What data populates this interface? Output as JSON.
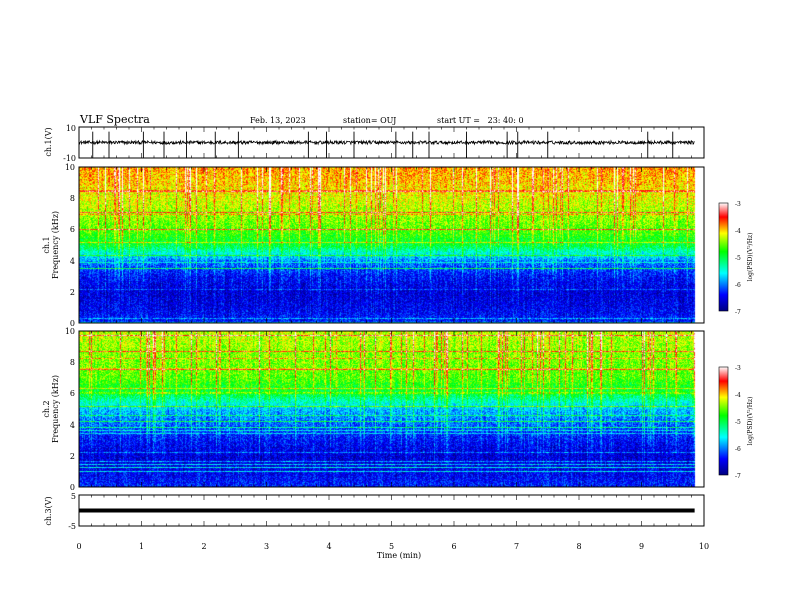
{
  "header": {
    "title": "VLF Spectra",
    "date": "Feb. 13, 2023",
    "station": "station= OUJ",
    "start": "start UT =   23: 40: 0"
  },
  "chart_data": [
    {
      "type": "line",
      "panel": "ch1-waveform",
      "ylabel": "ch.1(V)",
      "ylim": [
        -10,
        10
      ],
      "yticks": [
        "10",
        "-10"
      ],
      "baseline": 0,
      "spikes_min": [
        0.22,
        0.48,
        1.03,
        1.36,
        1.72,
        2.18,
        2.55,
        3.67,
        3.96,
        4.4,
        5.07,
        5.34,
        5.6,
        6.2,
        6.85,
        7.02,
        7.5,
        9.1,
        9.5
      ],
      "line_color": "#000000"
    },
    {
      "type": "heatmap",
      "panel": "ch1-spectrogram",
      "ylabel_line1": "ch.1",
      "ylabel_line2": "Frequency (kHz)",
      "ylim": [
        0,
        10
      ],
      "yticks": [
        "0",
        "2",
        "4",
        "6",
        "8",
        "10"
      ],
      "colorbar_label": "log(PSD)(V²/Hz)",
      "colorbar_ticks": [
        "-3",
        "-4",
        "-5",
        "-6",
        "-7"
      ],
      "colorbar_range": [
        -7,
        -3
      ],
      "psd_profile_khz": [
        [
          0,
          -6.3
        ],
        [
          1,
          -6.5
        ],
        [
          2,
          -6.6
        ],
        [
          3,
          -6.4
        ],
        [
          4,
          -6.0
        ],
        [
          5,
          -5.0
        ],
        [
          6,
          -4.6
        ],
        [
          7,
          -4.4
        ],
        [
          8,
          -4.2
        ],
        [
          9,
          -4.0
        ],
        [
          10,
          -3.9
        ]
      ]
    },
    {
      "type": "heatmap",
      "panel": "ch2-spectrogram",
      "ylabel_line1": "ch.2",
      "ylabel_line2": "Frequency (kHz)",
      "ylim": [
        0,
        10
      ],
      "yticks": [
        "0",
        "2",
        "4",
        "6",
        "8",
        "10"
      ],
      "colorbar_label": "log(PSD)(V²/Hz)",
      "colorbar_ticks": [
        "-3",
        "-4",
        "-5",
        "-6",
        "-7"
      ],
      "colorbar_range": [
        -7,
        -3
      ],
      "psd_profile_khz": [
        [
          0,
          -6.3
        ],
        [
          1,
          -6.5
        ],
        [
          2,
          -6.6
        ],
        [
          3,
          -6.4
        ],
        [
          4,
          -6.1
        ],
        [
          5,
          -5.8
        ],
        [
          6,
          -5.0
        ],
        [
          7,
          -4.6
        ],
        [
          8,
          -4.5
        ],
        [
          9,
          -4.4
        ],
        [
          10,
          -4.3
        ]
      ]
    },
    {
      "type": "line",
      "panel": "ch3-waveform",
      "ylabel": "ch.3(V)",
      "ylim": [
        -5,
        5
      ],
      "yticks": [
        "5",
        "-5"
      ],
      "baseline": 0,
      "line_color": "#000000"
    }
  ],
  "xaxis": {
    "label": "Time (min)",
    "range": [
      0,
      10
    ],
    "ticks": [
      "0",
      "1",
      "2",
      "3",
      "4",
      "5",
      "6",
      "7",
      "8",
      "9",
      "10"
    ],
    "data_end_min": 9.85
  }
}
